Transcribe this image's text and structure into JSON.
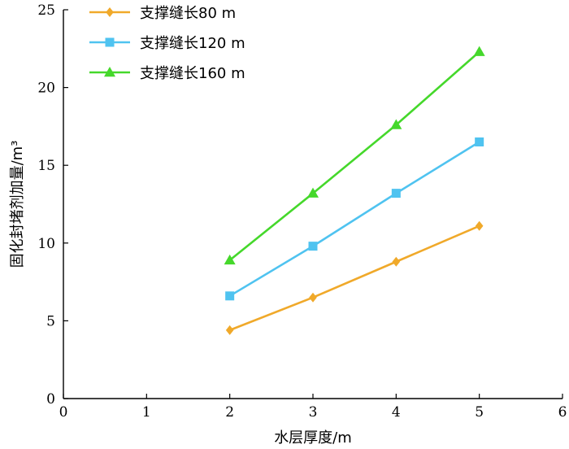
{
  "chart_data": {
    "type": "line",
    "xlabel": "水层厚度/m",
    "ylabel": "固化封堵剂加量/m³",
    "xlim": [
      0,
      6
    ],
    "ylim": [
      0,
      25
    ],
    "xticks": [
      "0",
      "1",
      "2",
      "3",
      "4",
      "5",
      "6"
    ],
    "yticks": [
      "0",
      "5",
      "10",
      "15",
      "20",
      "25"
    ],
    "grid": false,
    "legend_position": "top-left",
    "x": [
      2,
      3,
      4,
      5
    ],
    "series": [
      {
        "name": "支撑缝长80 m",
        "values": [
          4.4,
          6.5,
          8.8,
          11.1
        ],
        "color": "#f0a92a",
        "marker": "diamond"
      },
      {
        "name": "支撑缝长120 m",
        "values": [
          6.6,
          9.8,
          13.2,
          16.5
        ],
        "color": "#4fc3f0",
        "marker": "square"
      },
      {
        "name": "支撑缝长160 m",
        "values": [
          8.9,
          13.2,
          17.6,
          22.3
        ],
        "color": "#45d82b",
        "marker": "triangle"
      }
    ]
  }
}
